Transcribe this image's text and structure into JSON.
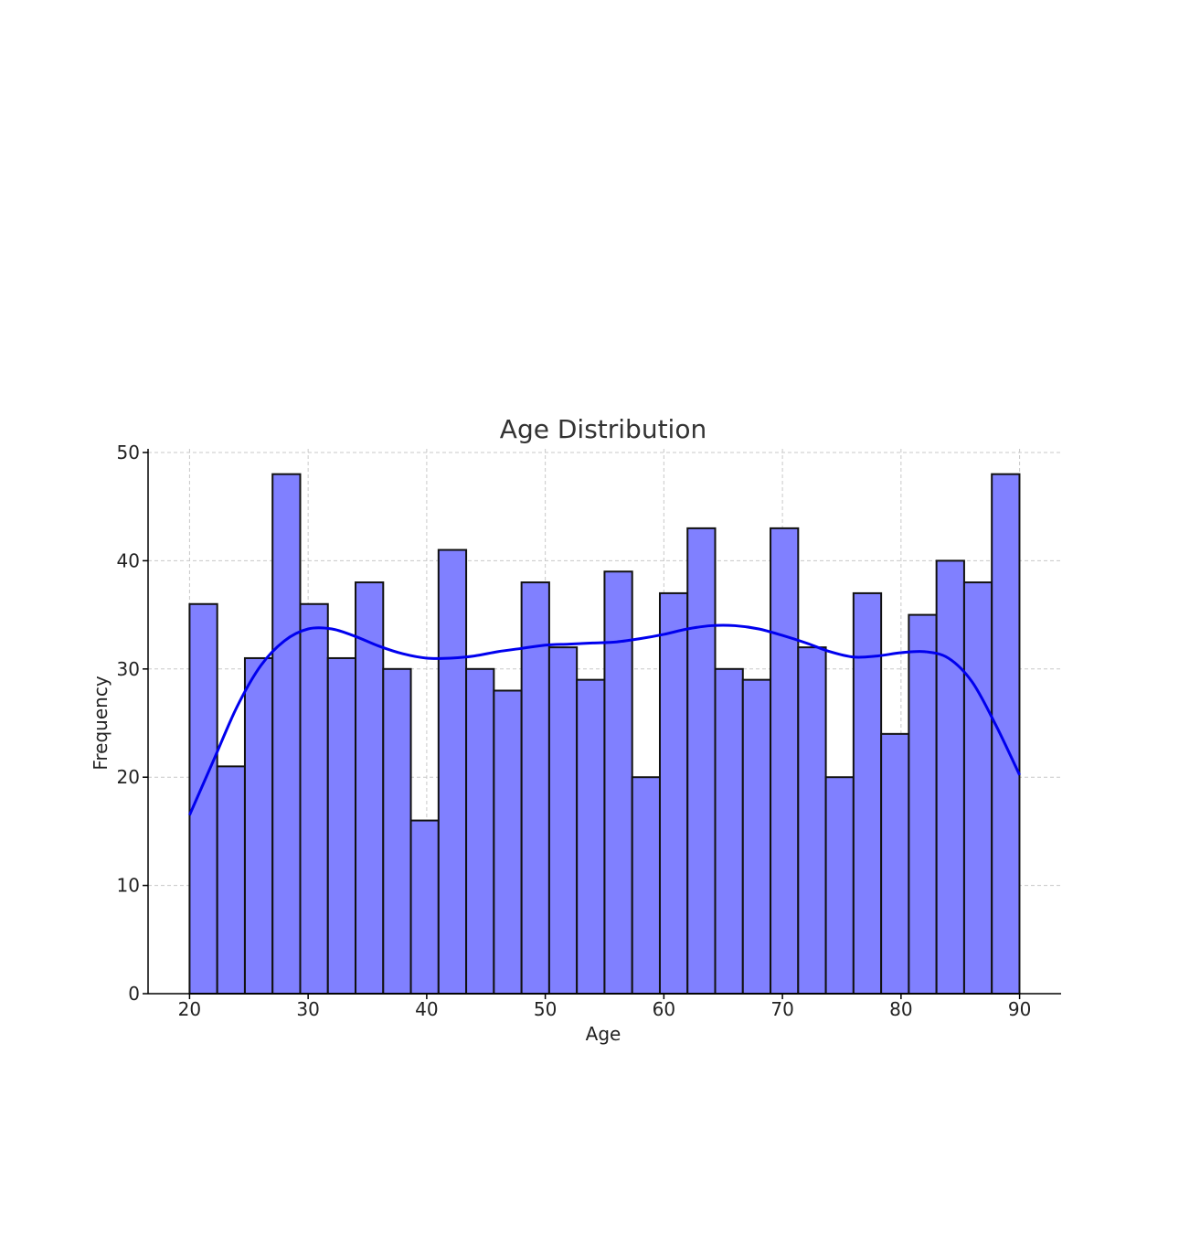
{
  "chart_data": {
    "type": "bar",
    "subtype": "histogram-with-kde",
    "title": "Age Distribution",
    "xlabel": "Age",
    "ylabel": "Frequency",
    "xlim": [
      16.5,
      93.5
    ],
    "ylim": [
      0,
      50
    ],
    "xticks": [
      20,
      30,
      40,
      50,
      60,
      70,
      80,
      90
    ],
    "yticks": [
      0,
      10,
      20,
      30,
      40,
      50
    ],
    "grid": true,
    "bar_color": "#8080ff",
    "edge_color": "#111111",
    "line_color": "#0000ee",
    "bin_start": 20,
    "bin_width": 2.333,
    "values": [
      36,
      21,
      31,
      48,
      36,
      31,
      38,
      30,
      16,
      41,
      30,
      28,
      38,
      32,
      29,
      39,
      20,
      37,
      43,
      30,
      29,
      43,
      32,
      20,
      37,
      24,
      35,
      40,
      38,
      48
    ],
    "kde": {
      "x": [
        20,
        22,
        24,
        26,
        28,
        30,
        32,
        34,
        36,
        38,
        40,
        42,
        44,
        46,
        48,
        50,
        52,
        54,
        56,
        58,
        60,
        62,
        64,
        66,
        68,
        70,
        72,
        74,
        76,
        78,
        80,
        82,
        84,
        86,
        88,
        90
      ],
      "y": [
        16.5,
        21.5,
        26.5,
        30.3,
        32.6,
        33.7,
        33.7,
        33.0,
        32.1,
        31.4,
        31.0,
        31.0,
        31.2,
        31.6,
        31.9,
        32.2,
        32.3,
        32.4,
        32.5,
        32.8,
        33.2,
        33.7,
        34.0,
        34.0,
        33.7,
        33.1,
        32.4,
        31.6,
        31.1,
        31.2,
        31.5,
        31.6,
        31.0,
        28.8,
        24.8,
        20.2
      ]
    }
  }
}
